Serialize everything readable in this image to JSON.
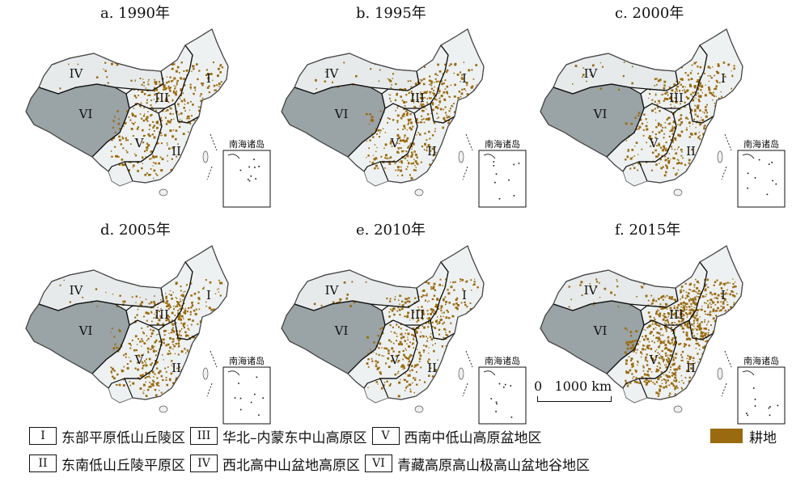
{
  "panels": [
    {
      "title": "a. 1990年",
      "density": 0.3
    },
    {
      "title": "b. 1995年",
      "density": 0.34
    },
    {
      "title": "c. 2000年",
      "density": 0.33
    },
    {
      "title": "d. 2005年",
      "density": 0.35
    },
    {
      "title": "e. 2010年",
      "density": 0.32
    },
    {
      "title": "f. 2015年",
      "density": 0.62
    }
  ],
  "regions": {
    "I": "I",
    "II": "II",
    "III": "III",
    "IV": "IV",
    "V": "V",
    "VI": "VI"
  },
  "inset_label": "南海诸岛",
  "scale_label": "0   1000 km",
  "legend": {
    "row1": [
      {
        "numeral": "I",
        "text": "东部平原低山丘陵区"
      },
      {
        "numeral": "III",
        "text": "华北–内蒙东中山高原区"
      },
      {
        "numeral": "V",
        "text": "西南中低山高原盆地区"
      }
    ],
    "row2": [
      {
        "numeral": "II",
        "text": "东南低山丘陵平原区"
      },
      {
        "numeral": "IV",
        "text": "西北高中山盆地高原区"
      },
      {
        "numeral": "VI",
        "text": "青藏高原高山极高山盆地谷地区"
      }
    ],
    "cropland_label": "耕地"
  },
  "colors": {
    "cropland": "#9a6a10",
    "plateau": "#9aa3a5",
    "northwest": "#e6eaeb",
    "land_light": "#eef1f1",
    "boundary": "#111111"
  }
}
